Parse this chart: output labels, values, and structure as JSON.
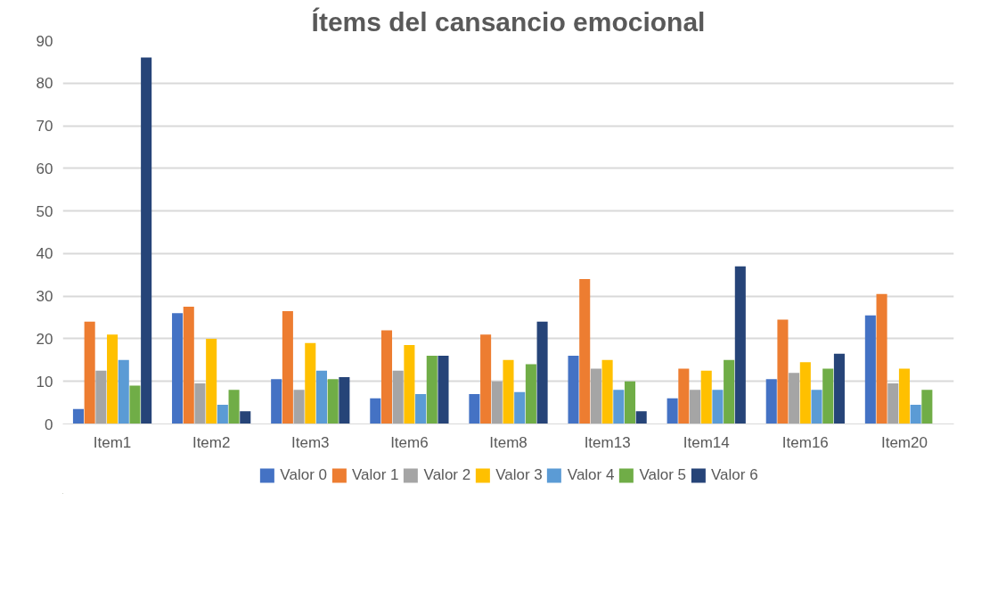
{
  "chart_data": {
    "type": "bar",
    "title": "Ítems del cansancio emocional",
    "categories": [
      "Item1",
      "Item2",
      "Item3",
      "Item6",
      "Item8",
      "Item13",
      "Item14",
      "Item16",
      "Item20"
    ],
    "series": [
      {
        "name": "Valor 0",
        "color": "#4472c4",
        "values": [
          3.5,
          26,
          10.5,
          6,
          7,
          16,
          6,
          10.5,
          25.5
        ]
      },
      {
        "name": "Valor 1",
        "color": "#ed7d31",
        "values": [
          24,
          27.5,
          26.5,
          22,
          21,
          34,
          13,
          24.5,
          30.5
        ]
      },
      {
        "name": "Valor 2",
        "color": "#a5a5a5",
        "values": [
          12.5,
          9.5,
          8,
          12.5,
          10,
          13,
          8,
          12,
          9.5
        ]
      },
      {
        "name": "Valor 3",
        "color": "#ffc000",
        "values": [
          21,
          20,
          19,
          18.5,
          15,
          15,
          12.5,
          14.5,
          13
        ]
      },
      {
        "name": "Valor 4",
        "color": "#5b9bd5",
        "values": [
          15,
          4.5,
          12.5,
          7,
          7.5,
          8,
          8,
          8,
          4.5
        ]
      },
      {
        "name": "Valor 5",
        "color": "#70ad47",
        "values": [
          9,
          8,
          10.5,
          16,
          14,
          10,
          15,
          13,
          8
        ]
      },
      {
        "name": "Valor 6",
        "color": "#264478",
        "values": [
          86,
          3,
          11,
          16,
          24,
          3,
          37,
          16.5,
          0
        ]
      }
    ],
    "ylim": [
      0,
      90
    ],
    "yticks": [
      0,
      10,
      20,
      30,
      40,
      50,
      60,
      70,
      80,
      90
    ],
    "grid": "y",
    "legend": "bottom"
  }
}
